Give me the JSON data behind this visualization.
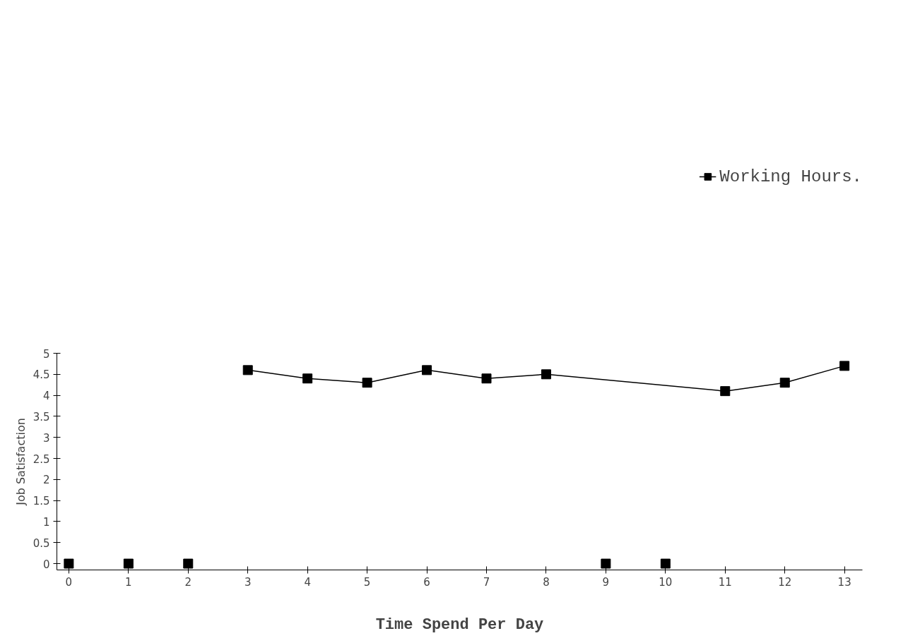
{
  "chart_data": {
    "type": "scatter",
    "xlabel": "Time Spend Per Day",
    "ylabel": "Job Satisfaction",
    "series": [
      {
        "name": "Working Hours.",
        "type": "line",
        "color": "#000000",
        "x": [
          3,
          4,
          5,
          6,
          7,
          8,
          11,
          12,
          13
        ],
        "values": [
          4.6,
          4.4,
          4.3,
          4.6,
          4.4,
          4.5,
          4.1,
          4.3,
          4.7
        ]
      },
      {
        "color": "#000000",
        "x": [
          0,
          1,
          2,
          9,
          10
        ],
        "values": [
          0,
          0,
          0,
          0,
          0
        ]
      }
    ],
    "xlim": [
      -0.2,
      13.3
    ],
    "xticks": [
      0,
      1,
      2,
      3,
      4,
      5,
      6,
      7,
      8,
      9,
      10,
      11,
      12,
      13
    ],
    "ylim": [
      -0.15,
      5
    ],
    "yticks": [
      0,
      0.5,
      1,
      1.5,
      2,
      2.5,
      3,
      3.5,
      4,
      4.5,
      5
    ],
    "marker": "square",
    "line_style": "solid",
    "grid": false,
    "legend": "top right"
  }
}
